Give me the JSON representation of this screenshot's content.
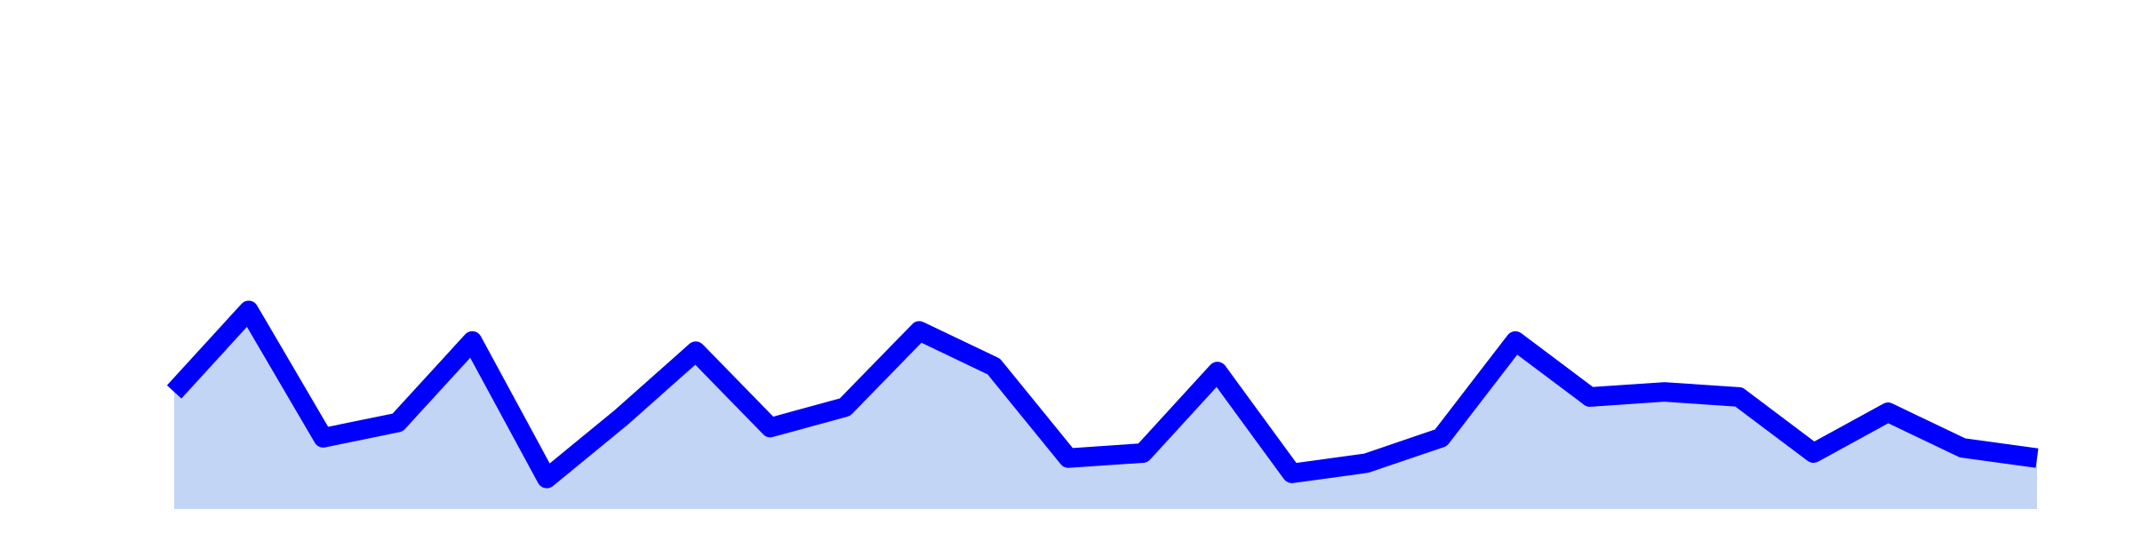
{
  "chart_data": {
    "type": "area",
    "x": [
      0,
      1,
      2,
      3,
      4,
      5,
      6,
      7,
      8,
      9,
      10,
      11,
      12,
      13,
      14,
      15,
      16,
      17,
      18,
      19,
      20,
      21,
      22,
      23,
      24,
      25
    ],
    "series": [
      {
        "values": [
          0.23,
          0.39,
          0.14,
          0.17,
          0.33,
          0.06,
          0.18,
          0.31,
          0.16,
          0.2,
          0.35,
          0.28,
          0.1,
          0.11,
          0.27,
          0.07,
          0.09,
          0.14,
          0.33,
          0.22,
          0.23,
          0.22,
          0.11,
          0.19,
          0.12,
          0.1
        ]
      }
    ],
    "ylim": [
      0,
      1
    ],
    "xlim": [
      0,
      25
    ],
    "grid": false,
    "axes_visible": false,
    "colors": {
      "line": "#0000ff",
      "fill": "#c3d5f5"
    }
  }
}
